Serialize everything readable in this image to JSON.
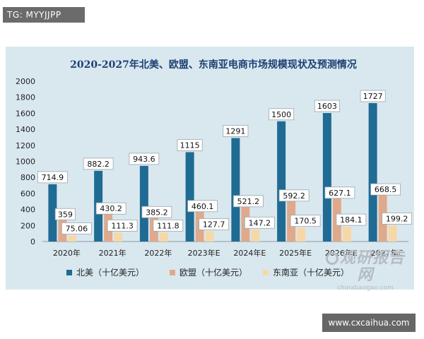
{
  "badge": {
    "text": "TG: MYYJJPP"
  },
  "site": {
    "text": "www.cxcaihua.com"
  },
  "watermark": {
    "cn": "观研报告网",
    "en": "chinabaogao.com"
  },
  "chart_data": {
    "type": "bar",
    "title": "2020-2027年北美、欧盟、东南亚电商市场规模现状及预测情况",
    "categories": [
      "2020年",
      "2021年",
      "2022年",
      "2023年E",
      "2024年E",
      "2025年E",
      "2026年E",
      "2027年E"
    ],
    "series": [
      {
        "name": "北美（十亿美元）",
        "color": "#1f6b94",
        "values": [
          714.9,
          882.2,
          943.6,
          1115,
          1291,
          1500,
          1603,
          1727
        ]
      },
      {
        "name": "欧盟（十亿美元）",
        "color": "#e0a98c",
        "values": [
          359,
          430.2,
          385.2,
          460.1,
          521.2,
          592.2,
          627.1,
          668.5
        ]
      },
      {
        "name": "东南亚（十亿美元）",
        "color": "#f6d8a6",
        "values": [
          75.06,
          111.3,
          111.8,
          127.7,
          147.2,
          170.5,
          184.1,
          199.2
        ]
      }
    ],
    "data_labels": [
      [
        "714.9",
        "882.2",
        "943.6",
        "1115",
        "1291",
        "1500",
        "1603",
        "1727"
      ],
      [
        "359",
        "430.2",
        "385.2",
        "460.1",
        "521.2",
        "592.2",
        "627.1",
        "668.5"
      ],
      [
        "75.06",
        "111.3",
        "111.8",
        "127.7",
        "147.2",
        "170.5",
        "184.1",
        "199.2"
      ]
    ],
    "ylim": [
      0,
      2000
    ],
    "yticks": [
      0,
      200,
      400,
      600,
      800,
      1000,
      1200,
      1400,
      1600,
      1800,
      2000
    ],
    "grid": false,
    "legend": "bottom-left"
  }
}
